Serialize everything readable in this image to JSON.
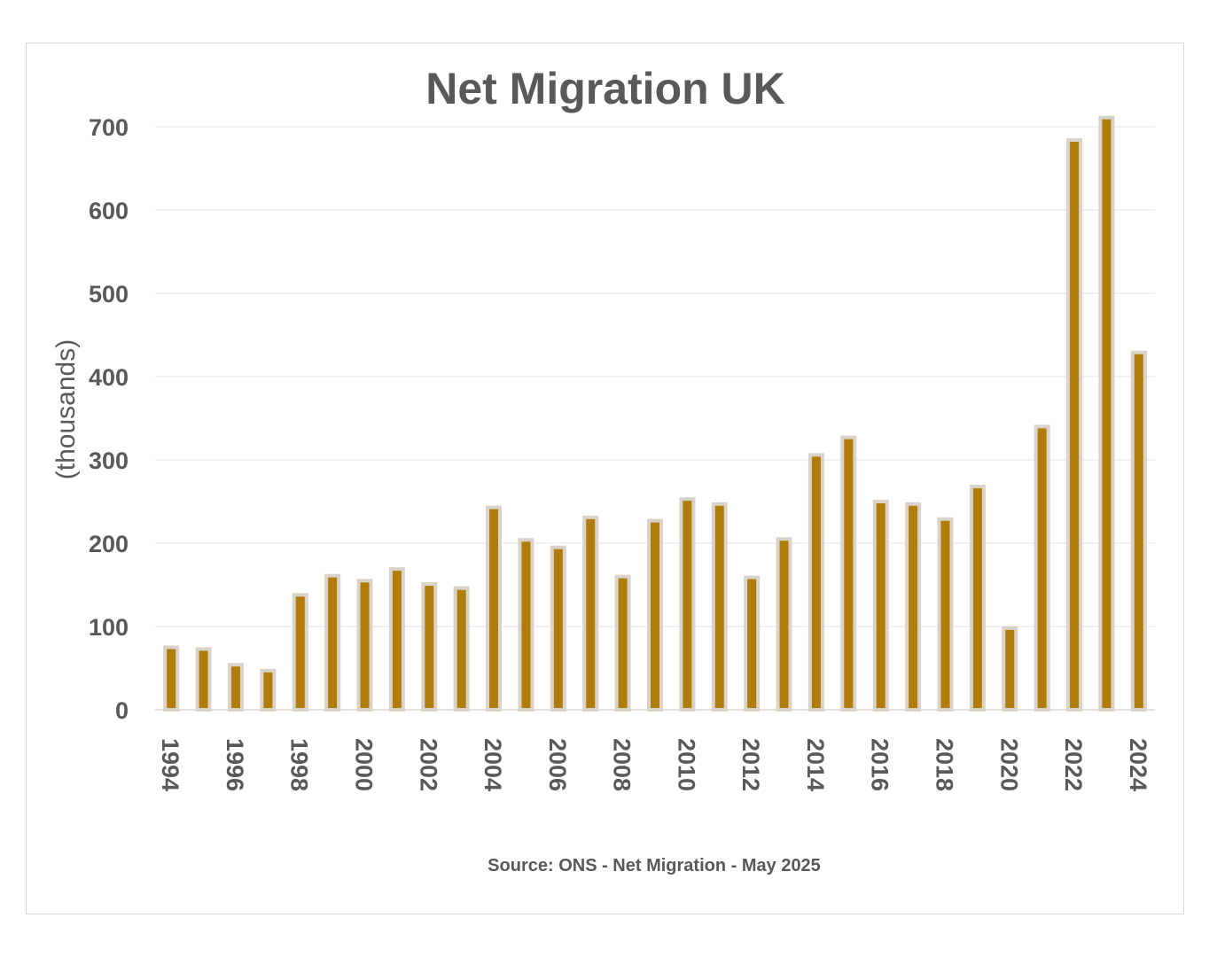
{
  "chart_data": {
    "type": "bar",
    "title": "Net Migration UK",
    "xlabel": "",
    "ylabel": "(thousands)",
    "source": "Source: ONS - Net Migration - May 2025",
    "ylim": [
      0,
      700
    ],
    "yticks": [
      0,
      100,
      200,
      300,
      400,
      500,
      600,
      700
    ],
    "grid": true,
    "legend": "none",
    "bar_color": "#b07d0a",
    "bar_outline_color": "#d9d3c9",
    "categories": [
      "1994",
      "1995",
      "1996",
      "1997",
      "1998",
      "1999",
      "2000",
      "2001",
      "2002",
      "2003",
      "2004",
      "2005",
      "2006",
      "2007",
      "2008",
      "2009",
      "2010",
      "2011",
      "2012",
      "2013",
      "2014",
      "2015",
      "2016",
      "2017",
      "2018",
      "2019",
      "2020",
      "2021",
      "2022",
      "2023",
      "2024"
    ],
    "xtick_labels": [
      "1994",
      "1996",
      "1998",
      "2000",
      "2002",
      "2004",
      "2006",
      "2008",
      "2010",
      "2012",
      "2014",
      "2016",
      "2018",
      "2020",
      "2022",
      "2024"
    ],
    "values": [
      75,
      73,
      54,
      47,
      138,
      161,
      155,
      169,
      151,
      146,
      243,
      204,
      195,
      231,
      160,
      227,
      253,
      247,
      159,
      205,
      306,
      327,
      250,
      247,
      229,
      268,
      98,
      340,
      684,
      711,
      429
    ]
  }
}
